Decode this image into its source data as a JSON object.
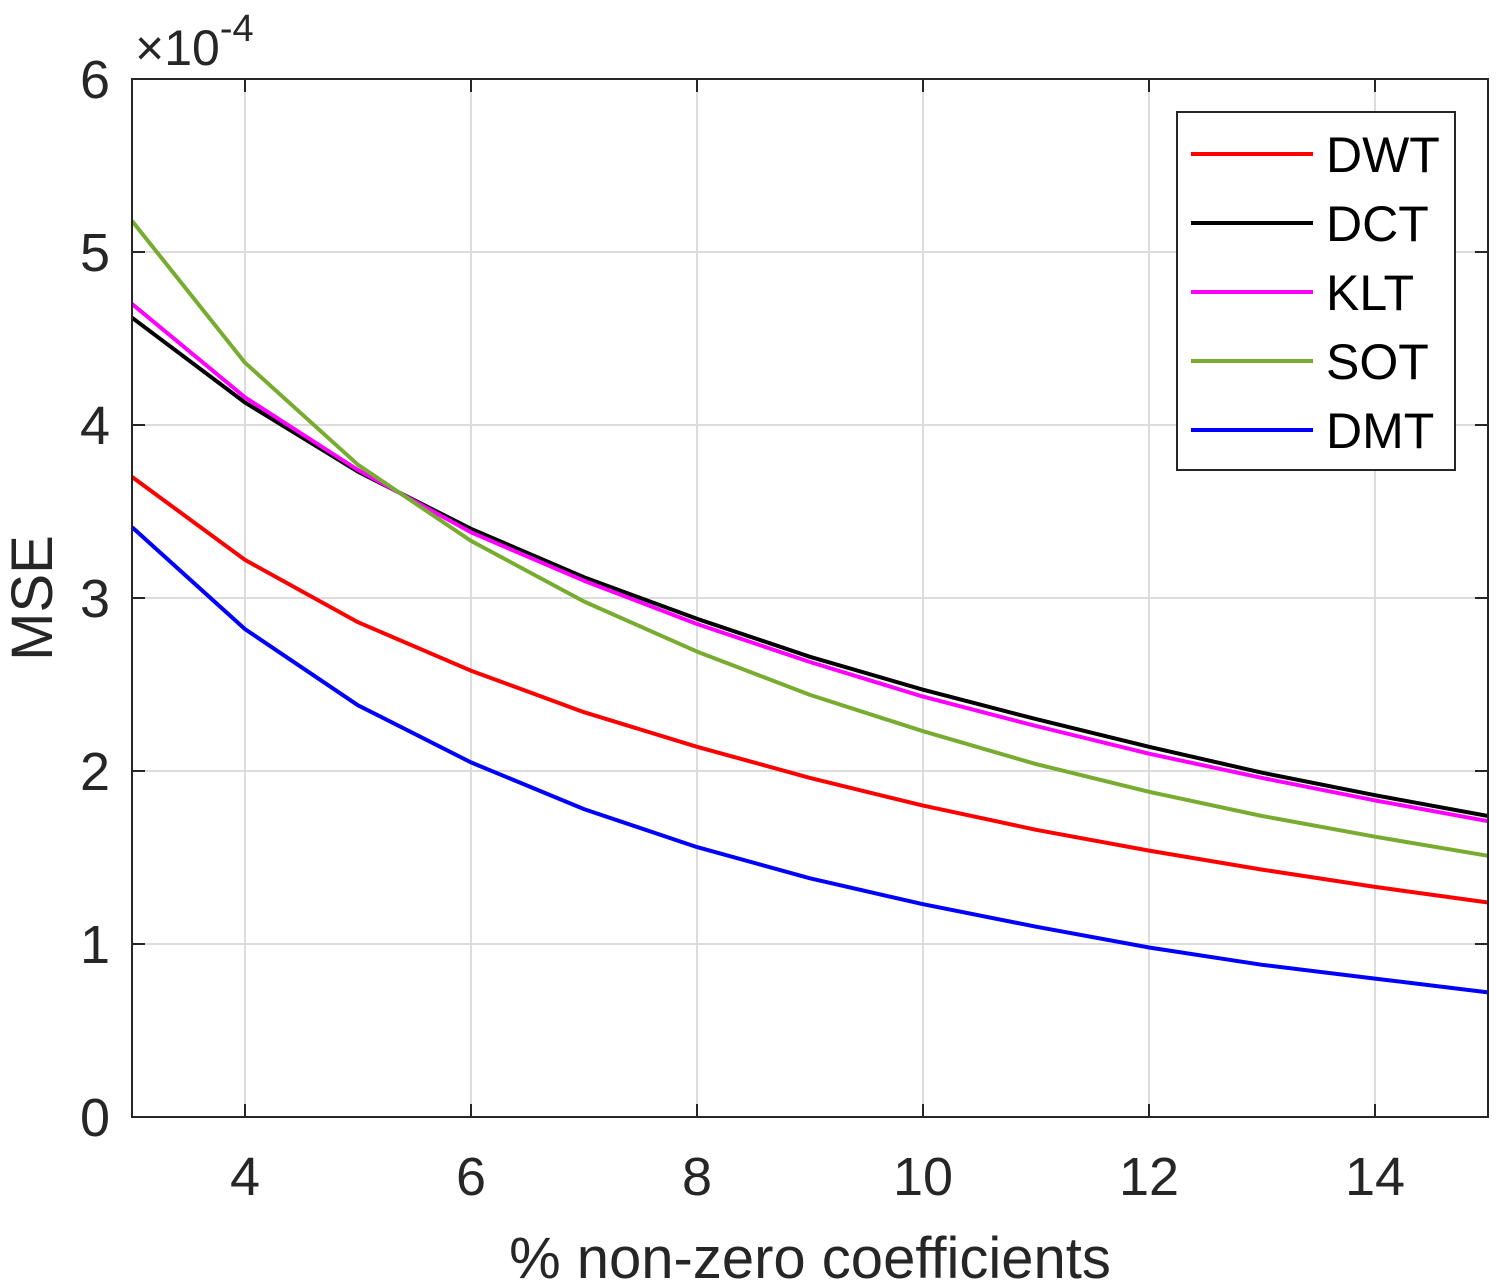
{
  "chart_data": {
    "type": "line",
    "xlabel": "% non-zero coefficients",
    "ylabel": "MSE",
    "xlim": [
      3,
      15
    ],
    "ylim": [
      0,
      6
    ],
    "x_ticks": [
      4,
      6,
      8,
      10,
      12,
      14
    ],
    "y_ticks": [
      0,
      1,
      2,
      3,
      4,
      5,
      6
    ],
    "y_exponent": {
      "base": "10",
      "power": "-4",
      "prefix": "×"
    },
    "grid": true,
    "legend_position": "top-right",
    "x": [
      3,
      4,
      5,
      6,
      7,
      8,
      9,
      10,
      11,
      12,
      13,
      14,
      15
    ],
    "series": [
      {
        "name": "DWT",
        "color": "#ff0000",
        "values": [
          3.7,
          3.22,
          2.86,
          2.58,
          2.34,
          2.14,
          1.96,
          1.8,
          1.66,
          1.54,
          1.43,
          1.33,
          1.24
        ]
      },
      {
        "name": "DCT",
        "color": "#000000",
        "values": [
          4.62,
          4.13,
          3.73,
          3.4,
          3.12,
          2.88,
          2.66,
          2.47,
          2.3,
          2.14,
          1.99,
          1.86,
          1.74
        ]
      },
      {
        "name": "KLT",
        "color": "#ff00ff",
        "values": [
          4.7,
          4.16,
          3.74,
          3.38,
          3.1,
          2.85,
          2.63,
          2.43,
          2.26,
          2.1,
          1.96,
          1.83,
          1.71
        ]
      },
      {
        "name": "SOT",
        "color": "#77ac30",
        "values": [
          5.18,
          4.36,
          3.77,
          3.33,
          2.98,
          2.69,
          2.44,
          2.23,
          2.04,
          1.88,
          1.74,
          1.62,
          1.51
        ]
      },
      {
        "name": "DMT",
        "color": "#0000ff",
        "values": [
          3.41,
          2.82,
          2.38,
          2.05,
          1.78,
          1.56,
          1.38,
          1.23,
          1.1,
          0.98,
          0.88,
          0.8,
          0.72
        ]
      }
    ]
  }
}
